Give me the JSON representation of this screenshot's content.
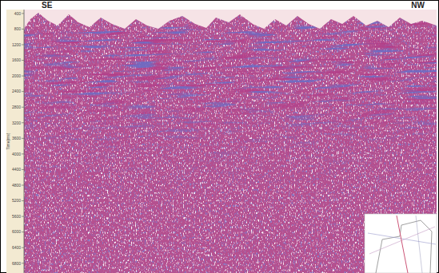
{
  "chart_data": {
    "type": "seismic",
    "annotations": [
      "SE",
      "NW"
    ],
    "y_label": "Time(ms)",
    "ylim": [
      300,
      7050
    ],
    "yticks": [
      400,
      800,
      1200,
      1600,
      2000,
      2400,
      2800,
      3200,
      3600,
      4000,
      4400,
      4800,
      5200,
      5600,
      6000,
      6400,
      6800
    ]
  }
}
